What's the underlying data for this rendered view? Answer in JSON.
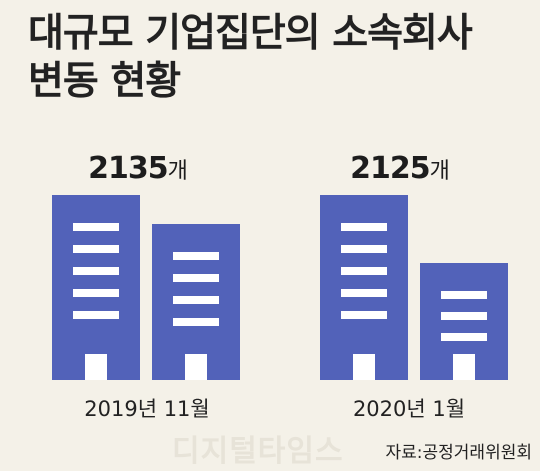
{
  "title_line1": "대규모 기업집단의 소속회사",
  "title_line2": "변동 현황",
  "source": "자료:공정거래위원회",
  "watermark": "디지털타임스",
  "colors": {
    "building": "#5262b9",
    "window": "#ffffff",
    "background": "#f4f1e8"
  },
  "chart_data": {
    "type": "bar",
    "unit": "개",
    "categories": [
      "2019년 11월",
      "2020년 1월"
    ],
    "values": [
      2135,
      2125
    ],
    "value_labels": [
      "2135",
      "2125"
    ]
  }
}
